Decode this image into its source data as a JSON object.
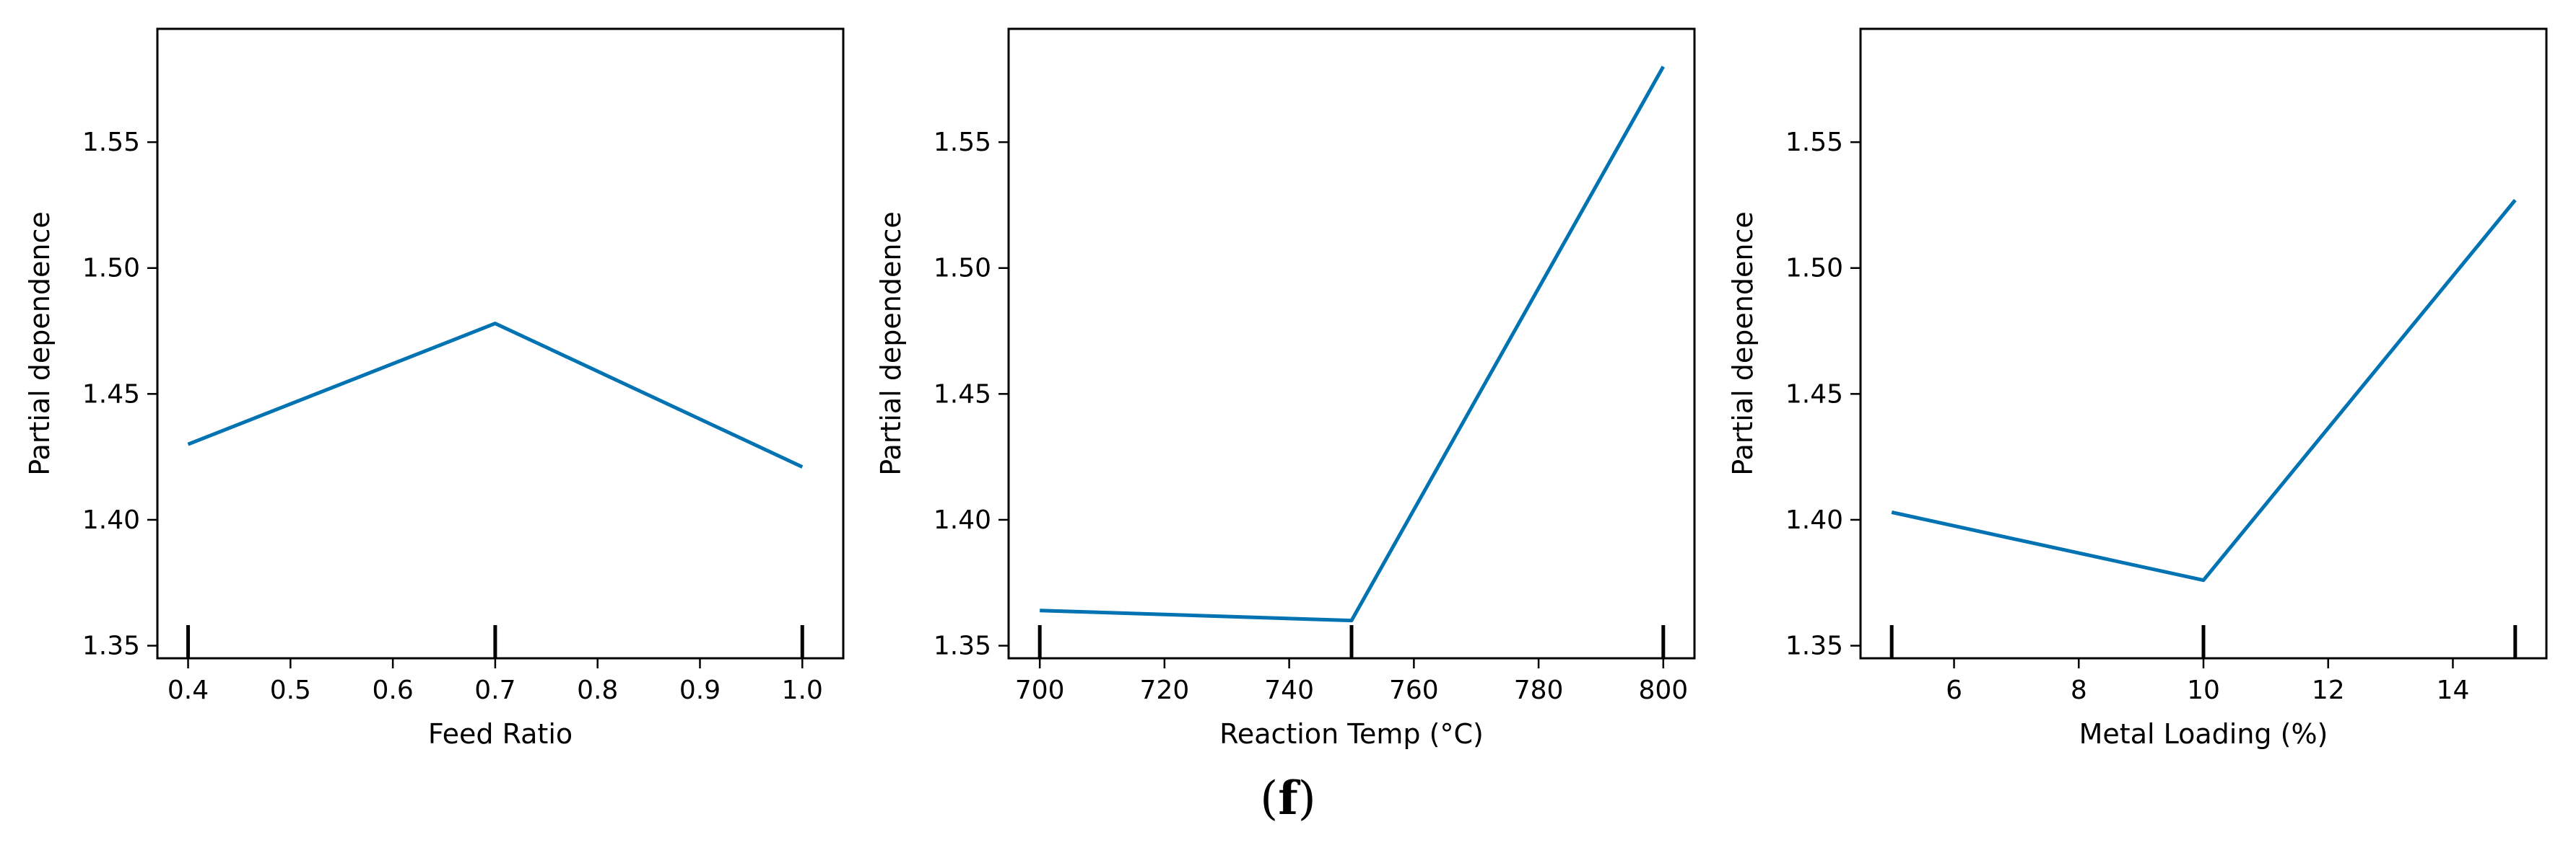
{
  "chart_data": [
    {
      "type": "line",
      "xlabel": "Feed Ratio",
      "ylabel": "Partial dependence",
      "xlim": [
        0.37,
        1.04
      ],
      "ylim": [
        1.345,
        1.595
      ],
      "xticks": [
        0.4,
        0.5,
        0.6,
        0.7,
        0.8,
        0.9,
        1.0
      ],
      "xtick_labels": [
        "0.4",
        "0.5",
        "0.6",
        "0.7",
        "0.8",
        "0.9",
        "1.0"
      ],
      "yticks": [
        1.35,
        1.4,
        1.45,
        1.5,
        1.55
      ],
      "ytick_labels": [
        "1.35",
        "1.40",
        "1.45",
        "1.50",
        "1.55"
      ],
      "rug": [
        0.4,
        0.7,
        1.0
      ],
      "color": "#0173b2",
      "series": [
        {
          "x": [
            0.4,
            0.7,
            1.0
          ],
          "y": [
            1.43,
            1.478,
            1.421
          ]
        }
      ]
    },
    {
      "type": "line",
      "xlabel": "Reaction Temp (°C)",
      "ylabel": "Partial dependence",
      "xlim": [
        695,
        805
      ],
      "ylim": [
        1.345,
        1.595
      ],
      "xticks": [
        700,
        720,
        740,
        760,
        780,
        800
      ],
      "xtick_labels": [
        "700",
        "720",
        "740",
        "760",
        "780",
        "800"
      ],
      "yticks": [
        1.35,
        1.4,
        1.45,
        1.5,
        1.55
      ],
      "ytick_labels": [
        "1.35",
        "1.40",
        "1.45",
        "1.50",
        "1.55"
      ],
      "rug": [
        700,
        750,
        800
      ],
      "color": "#0173b2",
      "series": [
        {
          "x": [
            700,
            750,
            800
          ],
          "y": [
            1.364,
            1.36,
            1.58
          ]
        }
      ]
    },
    {
      "type": "line",
      "xlabel": "Metal Loading (%)",
      "ylabel": "Partial dependence",
      "xlim": [
        4.5,
        15.5
      ],
      "ylim": [
        1.345,
        1.595
      ],
      "xticks": [
        6,
        8,
        10,
        12,
        14
      ],
      "xtick_labels": [
        "6",
        "8",
        "10",
        "12",
        "14"
      ],
      "yticks": [
        1.35,
        1.4,
        1.45,
        1.5,
        1.55
      ],
      "ytick_labels": [
        "1.35",
        "1.40",
        "1.45",
        "1.50",
        "1.55"
      ],
      "rug": [
        5,
        10,
        15
      ],
      "color": "#0173b2",
      "series": [
        {
          "x": [
            5,
            10,
            15
          ],
          "y": [
            1.403,
            1.376,
            1.527
          ]
        }
      ]
    }
  ],
  "caption": {
    "open": "(",
    "letter": "f",
    "close": ")"
  }
}
